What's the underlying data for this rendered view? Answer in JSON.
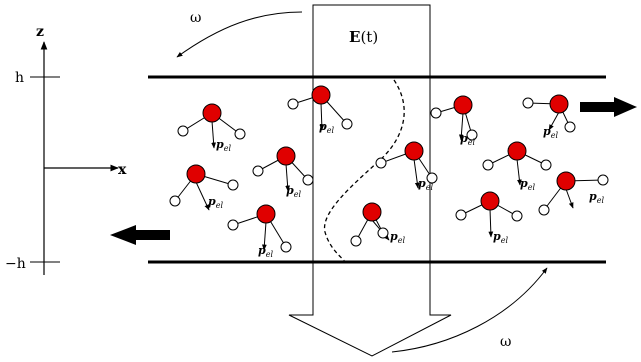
{
  "axes": {
    "z_label": "z",
    "x_label": "x",
    "h_label": "h",
    "neg_h_label": "−h"
  },
  "field": {
    "label_bold": "E",
    "label_rest": "(t)"
  },
  "rotation": {
    "top_label": "ω",
    "bottom_label": "ω"
  },
  "dipole": {
    "label_main": "p",
    "label_sub": "el"
  },
  "colors": {
    "oxygen": "#e00000",
    "hydrogen": "#ffffff",
    "stroke": "#000000"
  }
}
